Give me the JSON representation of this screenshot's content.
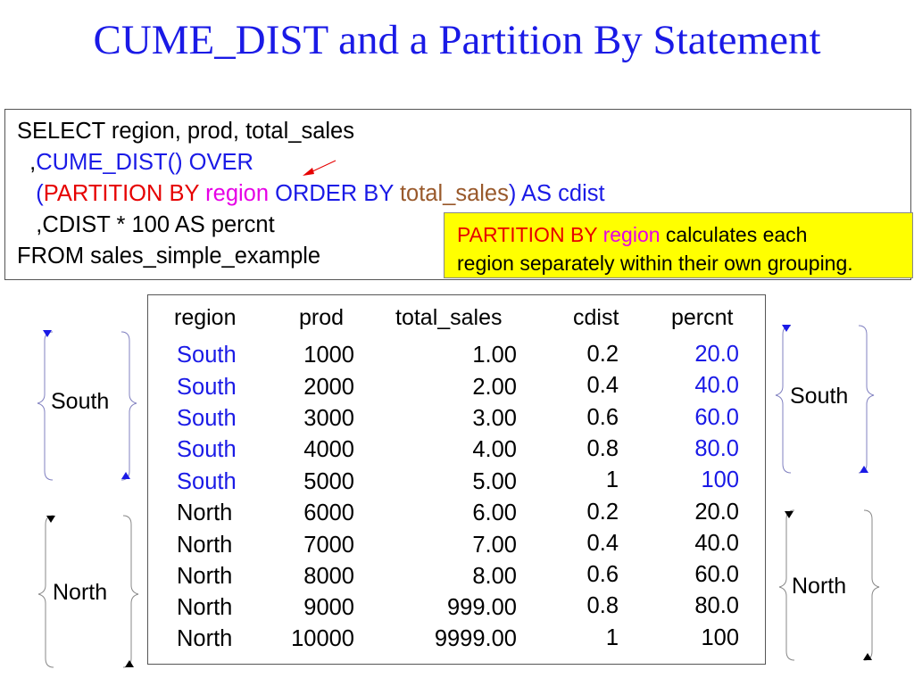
{
  "title": "CUME_DIST and a Partition By Statement",
  "code": {
    "line1": "SELECT region, prod, total_sales",
    "line2_prefix": "  ,",
    "line2_blue": "CUME_DIST() OVER",
    "line3_indent": "   ",
    "line3_open": "(",
    "line3_partition": "PARTITION BY ",
    "line3_region": "region",
    "line3_order": " ORDER BY ",
    "line3_total": "total_sales",
    "line3_close": ") AS cdist",
    "line4": "   ,CDIST * 100 AS percnt",
    "line5": "FROM sales_simple_example"
  },
  "note": {
    "part1": "PARTITION BY ",
    "part2": "region",
    "part3": " calculates each",
    "line2": "region separately within their own grouping."
  },
  "table": {
    "headers": {
      "region": "region",
      "prod": "prod",
      "total_sales": "total_sales",
      "cdist": "cdist",
      "percnt": "percnt"
    },
    "rows": [
      {
        "region": "South",
        "prod": "1000",
        "total_sales": "1.00",
        "cdist": "0.2",
        "percnt": "20.0"
      },
      {
        "region": "South",
        "prod": "2000",
        "total_sales": "2.00",
        "cdist": "0.4",
        "percnt": "40.0"
      },
      {
        "region": "South",
        "prod": "3000",
        "total_sales": "3.00",
        "cdist": "0.6",
        "percnt": "60.0"
      },
      {
        "region": "South",
        "prod": "4000",
        "total_sales": "4.00",
        "cdist": "0.8",
        "percnt": "80.0"
      },
      {
        "region": "South",
        "prod": "5000",
        "total_sales": "5.00",
        "cdist": "1",
        "percnt": "100"
      },
      {
        "region": "North",
        "prod": "6000",
        "total_sales": "6.00",
        "cdist": "0.2",
        "percnt": "20.0"
      },
      {
        "region": "North",
        "prod": "7000",
        "total_sales": "7.00",
        "cdist": "0.4",
        "percnt": "40.0"
      },
      {
        "region": "North",
        "prod": "8000",
        "total_sales": "8.00",
        "cdist": "0.6",
        "percnt": "60.0"
      },
      {
        "region": "North",
        "prod": "9000",
        "total_sales": "999.00",
        "cdist": "0.8",
        "percnt": "80.0"
      },
      {
        "region": "North",
        "prod": "10000",
        "total_sales": "9999.00",
        "cdist": "1",
        "percnt": "100"
      }
    ]
  },
  "braces": {
    "left_south": "South",
    "left_north": "North",
    "right_south": "South",
    "right_north": "North"
  },
  "colors": {
    "blue": "#1a1ae6",
    "red": "#e60000",
    "magenta": "#e600e6",
    "brown": "#99592b",
    "note_bg": "#ffff00"
  }
}
